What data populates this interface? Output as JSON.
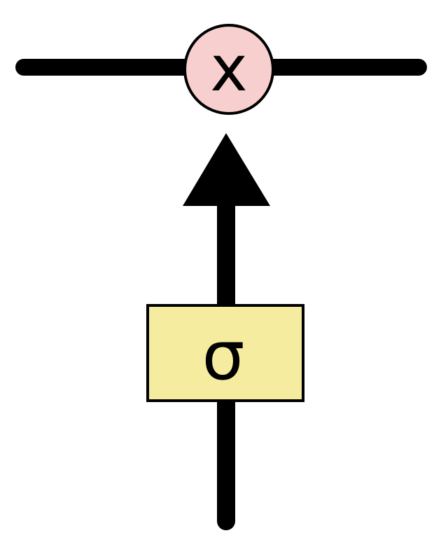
{
  "diagram": {
    "multiply_symbol": "x",
    "gate_symbol": "σ",
    "colors": {
      "stroke": "#000000",
      "multiply_fill": "#f7cfcf",
      "gate_fill": "#f5eca0",
      "background": "#ffffff"
    },
    "icons": {
      "multiply": "pointwise-multiply-icon",
      "gate": "sigmoid-gate-icon",
      "arrow": "arrow-up-icon"
    }
  }
}
